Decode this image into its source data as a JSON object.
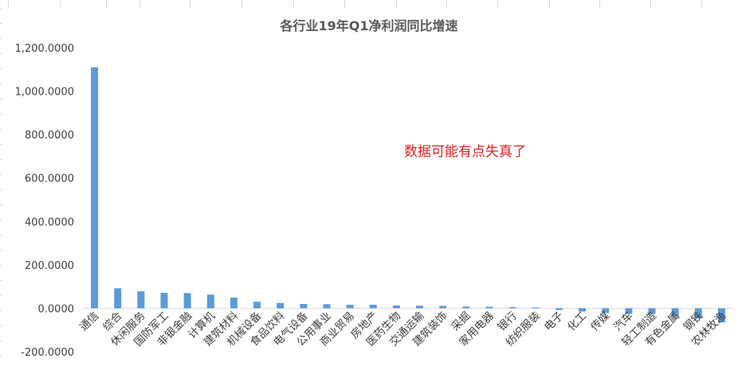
{
  "chart_data": {
    "type": "bar",
    "title": "各行业19年Q1净利润同比增速",
    "xlabel": "",
    "ylabel": "",
    "ylim": [
      -200,
      1200
    ],
    "yticks": [
      "-200.0000",
      "0.0000",
      "200.0000",
      "400.0000",
      "600.0000",
      "800.0000",
      "1,000.0000",
      "1,200.0000"
    ],
    "ytick_values": [
      -200,
      0,
      200,
      400,
      600,
      800,
      1000,
      1200
    ],
    "grid": false,
    "bar_color": "#5b9bd5",
    "categories": [
      "通信",
      "综合",
      "休闲服务",
      "国防军工",
      "非银金融",
      "计算机",
      "建筑材料",
      "机械设备",
      "食品饮料",
      "电气设备",
      "公用事业",
      "商业贸易",
      "房地产",
      "医药生物",
      "交通运输",
      "建筑装饰",
      "采掘",
      "家用电器",
      "银行",
      "纺织服装",
      "电子",
      "化工",
      "传媒",
      "汽车",
      "轻工制造",
      "有色金属",
      "钢铁",
      "农林牧渔"
    ],
    "values": [
      1110,
      92,
      78,
      71,
      70,
      63,
      49,
      30,
      24,
      20,
      19,
      16,
      16,
      13,
      12,
      11,
      8,
      7,
      5,
      4,
      -8,
      -15,
      -22,
      -26,
      -26,
      -37,
      -47,
      -65
    ],
    "annotation": "数据可能有点失真了"
  }
}
